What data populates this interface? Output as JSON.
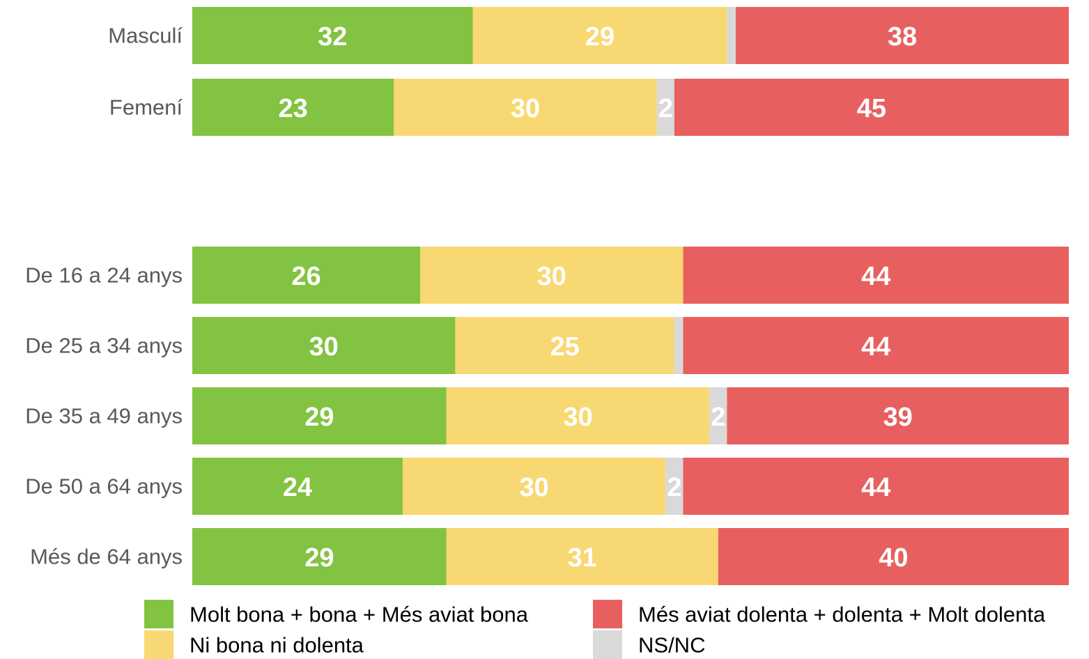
{
  "chart_data": {
    "type": "stacked-bar",
    "categories": [
      "Masculí",
      "Femení",
      "De 16 a 24 anys",
      "De 25 a 34 anys",
      "De 35 a 49 anys",
      "De 50 a 64 anys",
      "Més de 64 anys"
    ],
    "series": [
      {
        "name": "Molt bona + bona + Més aviat bona",
        "color": "#82c341",
        "values": [
          32,
          23,
          26,
          30,
          29,
          24,
          29
        ]
      },
      {
        "name": "Ni bona ni dolenta",
        "color": "#f8d872",
        "values": [
          29,
          30,
          30,
          25,
          30,
          30,
          31
        ]
      },
      {
        "name": "NS/NC",
        "color": "#d9d9d9",
        "values": [
          1,
          2,
          0,
          1,
          2,
          2,
          0
        ]
      },
      {
        "name": "Més aviat dolenta + dolenta + Molt dolenta",
        "color": "#e85f5f",
        "values": [
          38,
          45,
          44,
          44,
          39,
          44,
          40
        ]
      }
    ],
    "xlim": [
      0,
      100
    ]
  }
}
